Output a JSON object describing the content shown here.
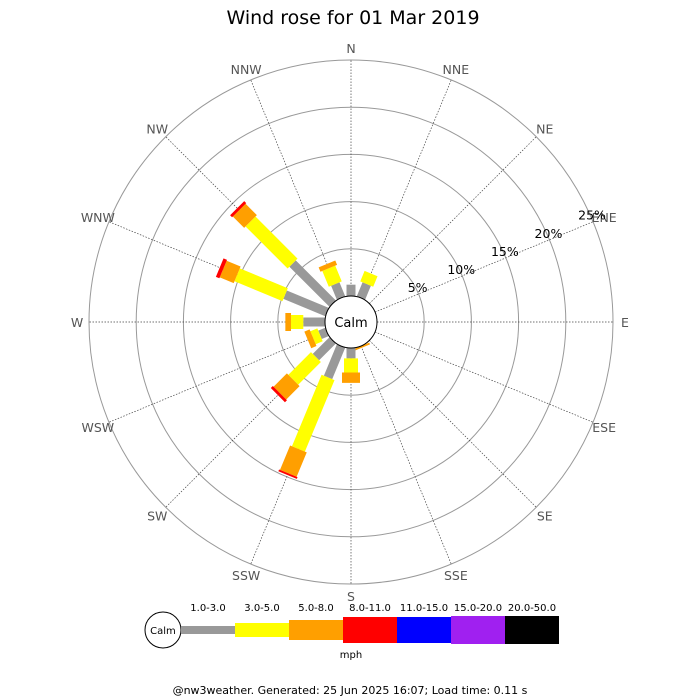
{
  "chart_data": {
    "type": "windrose",
    "title": "Wind rose for 01 Mar 2019",
    "directions": [
      "N",
      "NNE",
      "NE",
      "ENE",
      "E",
      "ESE",
      "SE",
      "SSE",
      "S",
      "SSW",
      "SW",
      "WSW",
      "W",
      "WNW",
      "NW",
      "NNW"
    ],
    "ring_labels": [
      "5%",
      "10%",
      "15%",
      "20%",
      "25%"
    ],
    "rings": [
      5,
      10,
      15,
      20,
      25
    ],
    "max_percent": 25,
    "calm_label": "Calm",
    "speed_unit": "mph",
    "bins": [
      {
        "range": "1.0-3.0",
        "color": "#999999"
      },
      {
        "range": "3.0-5.0",
        "color": "#ffff00"
      },
      {
        "range": "5.0-8.0",
        "color": "#ff9f00"
      },
      {
        "range": "8.0-11.0",
        "color": "#ff0000"
      },
      {
        "range": "11.0-15.0",
        "color": "#0000ff"
      },
      {
        "range": "15.0-20.0",
        "color": "#a020f0"
      },
      {
        "range": "20.0-50.0",
        "color": "#000000"
      }
    ],
    "series": [
      {
        "dir": "N",
        "values": [
          1.2,
          0.0,
          0.0,
          0,
          0,
          0,
          0
        ]
      },
      {
        "dir": "NNE",
        "values": [
          1.6,
          1.2,
          0.0,
          0,
          0,
          0,
          0
        ]
      },
      {
        "dir": "NE",
        "values": [
          0.0,
          0.0,
          0.0,
          0,
          0,
          0,
          0
        ]
      },
      {
        "dir": "ENE",
        "values": [
          0.0,
          0.0,
          0.0,
          0,
          0,
          0,
          0
        ]
      },
      {
        "dir": "E",
        "values": [
          0.0,
          0.0,
          0.0,
          0,
          0,
          0,
          0
        ]
      },
      {
        "dir": "ESE",
        "values": [
          0.0,
          0.0,
          0.0,
          0,
          0,
          0,
          0
        ]
      },
      {
        "dir": "SE",
        "values": [
          0.0,
          0.0,
          0.0,
          0,
          0,
          0,
          0
        ]
      },
      {
        "dir": "SSE",
        "values": [
          0.0,
          0.0,
          0.2,
          0,
          0,
          0,
          0
        ]
      },
      {
        "dir": "S",
        "values": [
          1.1,
          1.5,
          1.1,
          0,
          0,
          0,
          0
        ]
      },
      {
        "dir": "SSW",
        "values": [
          3.6,
          8.2,
          2.8,
          0.2,
          0,
          0,
          0
        ]
      },
      {
        "dir": "SW",
        "values": [
          2.5,
          3.4,
          2.0,
          0.3,
          0,
          0,
          0
        ]
      },
      {
        "dir": "WSW",
        "values": [
          0.8,
          0.8,
          0.6,
          0,
          0,
          0,
          0
        ]
      },
      {
        "dir": "W",
        "values": [
          2.3,
          1.3,
          0.6,
          0,
          0,
          0,
          0
        ]
      },
      {
        "dir": "WNW",
        "values": [
          4.8,
          5.5,
          1.6,
          0.4,
          0,
          0,
          0
        ]
      },
      {
        "dir": "NW",
        "values": [
          6.0,
          6.3,
          1.7,
          0.3,
          0,
          0,
          0
        ]
      },
      {
        "dir": "NNW",
        "values": [
          1.6,
          1.8,
          0.5,
          0,
          0,
          0,
          0
        ]
      }
    ]
  },
  "footer": "@nw3weather. Generated: 25 Jun 2025 16:07; Load time: 0.11 s"
}
